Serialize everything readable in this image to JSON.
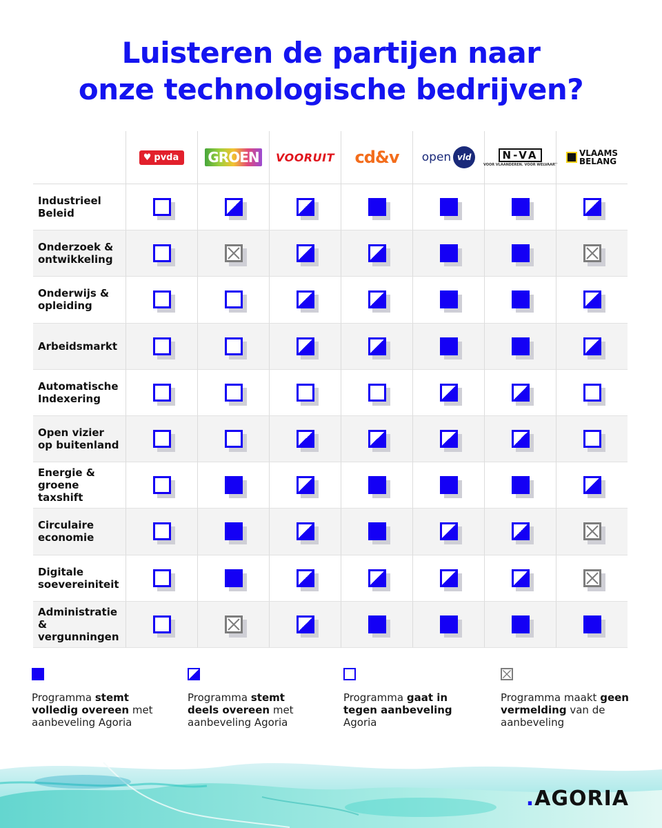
{
  "title": {
    "line1": "Luisteren de partijen naar",
    "line2": "onze technologische bedrijven?"
  },
  "parties": [
    {
      "key": "pvda",
      "label": "pvda"
    },
    {
      "key": "groen",
      "label": "GROEN"
    },
    {
      "key": "vooruit",
      "label": "VOORUIT"
    },
    {
      "key": "cdv",
      "label": "cd&v"
    },
    {
      "key": "openvld",
      "label": "open vld"
    },
    {
      "key": "nva",
      "label": "N-VA",
      "sub": "VOOR VLAANDEREN. VOOR WELVAART"
    },
    {
      "key": "vb",
      "label": "VLAAMS BELANG"
    }
  ],
  "rows": [
    {
      "label": "Industrieel\nBeleid",
      "values": [
        "empty",
        "partial",
        "partial",
        "full",
        "full",
        "full",
        "partial"
      ]
    },
    {
      "label": "Onderzoek &\nontwikkeling",
      "values": [
        "empty",
        "none",
        "partial",
        "partial",
        "full",
        "full",
        "none"
      ]
    },
    {
      "label": "Onderwijs &\nopleiding",
      "values": [
        "empty",
        "empty",
        "partial",
        "partial",
        "full",
        "full",
        "partial"
      ]
    },
    {
      "label": "Arbeidsmarkt",
      "values": [
        "empty",
        "empty",
        "partial",
        "partial",
        "full",
        "full",
        "partial"
      ]
    },
    {
      "label": "Automatische\nIndexering",
      "values": [
        "empty",
        "empty",
        "empty",
        "empty",
        "partial",
        "partial",
        "empty"
      ]
    },
    {
      "label": "Open vizier\nop buitenland",
      "values": [
        "empty",
        "empty",
        "partial",
        "partial",
        "partial",
        "partial",
        "empty"
      ]
    },
    {
      "label": "Energie &\ngroene taxshift",
      "values": [
        "empty",
        "full",
        "partial",
        "full",
        "full",
        "full",
        "partial"
      ]
    },
    {
      "label": "Circulaire\neconomie",
      "values": [
        "empty",
        "full",
        "partial",
        "full",
        "partial",
        "partial",
        "none"
      ]
    },
    {
      "label": "Digitale\nsoevereiniteit",
      "values": [
        "empty",
        "full",
        "partial",
        "partial",
        "partial",
        "partial",
        "none"
      ]
    },
    {
      "label": "Administratie &\nvergunningen",
      "values": [
        "empty",
        "none",
        "partial",
        "full",
        "full",
        "full",
        "full"
      ]
    }
  ],
  "legend": [
    {
      "type": "full",
      "pre": "Programma ",
      "bold": "stemt volledig overeen",
      "post": " met aanbeveling Agoria"
    },
    {
      "type": "partial",
      "pre": "Programma ",
      "bold": "stemt deels overeen",
      "post": " met aanbeveling Agoria"
    },
    {
      "type": "empty",
      "pre": "Programma ",
      "bold": "gaat in tegen aanbeveling",
      "post": " Agoria"
    },
    {
      "type": "none",
      "pre": "Programma maakt ",
      "bold": "geen vermelding",
      "post": " van de aanbeveling"
    }
  ],
  "brand": {
    "dot": ".",
    "name": "AGORIA"
  },
  "colors": {
    "accent": "#1414f0",
    "symbol": "#1400f5",
    "muted": "#7d7d7d"
  }
}
